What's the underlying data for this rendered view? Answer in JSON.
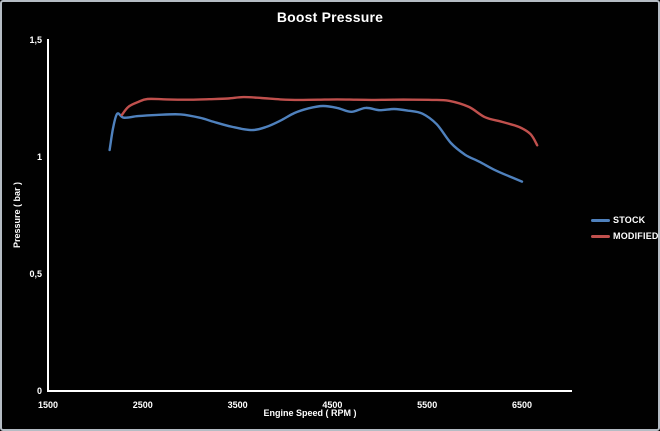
{
  "window": {
    "background": "#010101",
    "border_color": "#b5bcc4",
    "text_color": "#ffffff"
  },
  "chart_data": {
    "type": "line",
    "title": "Boost Pressure",
    "xlabel": "Engine Speed ( RPM )",
    "ylabel": "Pressure ( bar )",
    "xlim": [
      1500,
      6500
    ],
    "ylim": [
      0,
      1.5
    ],
    "grid": false,
    "background": "#010101",
    "legend_position": "right",
    "x_ticks": [
      {
        "value": 1500,
        "label": "1500"
      },
      {
        "value": 2500,
        "label": "2500"
      },
      {
        "value": 3500,
        "label": "3500"
      },
      {
        "value": 4500,
        "label": "4500"
      },
      {
        "value": 5500,
        "label": "5500"
      },
      {
        "value": 6500,
        "label": "6500"
      }
    ],
    "y_ticks": [
      {
        "value": 0,
        "label": "0"
      },
      {
        "value": 0.5,
        "label": "0,5"
      },
      {
        "value": 1,
        "label": "1"
      },
      {
        "value": 1.5,
        "label": "1,5"
      }
    ],
    "series": [
      {
        "name": "STOCK",
        "color": "#4F81BD",
        "points": [
          [
            2150,
            1.03
          ],
          [
            2185,
            1.12
          ],
          [
            2230,
            1.185
          ],
          [
            2300,
            1.168
          ],
          [
            2450,
            1.175
          ],
          [
            2650,
            1.18
          ],
          [
            2900,
            1.182
          ],
          [
            3100,
            1.168
          ],
          [
            3250,
            1.15
          ],
          [
            3450,
            1.128
          ],
          [
            3650,
            1.115
          ],
          [
            3800,
            1.128
          ],
          [
            3950,
            1.155
          ],
          [
            4100,
            1.188
          ],
          [
            4250,
            1.208
          ],
          [
            4400,
            1.218
          ],
          [
            4550,
            1.21
          ],
          [
            4700,
            1.193
          ],
          [
            4850,
            1.21
          ],
          [
            5000,
            1.2
          ],
          [
            5150,
            1.205
          ],
          [
            5300,
            1.198
          ],
          [
            5450,
            1.185
          ],
          [
            5600,
            1.14
          ],
          [
            5750,
            1.06
          ],
          [
            5900,
            1.01
          ],
          [
            6050,
            0.98
          ],
          [
            6200,
            0.947
          ],
          [
            6350,
            0.92
          ],
          [
            6500,
            0.895
          ]
        ]
      },
      {
        "name": "MODIFIED",
        "color": "#C0504D",
        "points": [
          [
            2280,
            1.18
          ],
          [
            2350,
            1.215
          ],
          [
            2450,
            1.235
          ],
          [
            2550,
            1.248
          ],
          [
            2750,
            1.246
          ],
          [
            3000,
            1.245
          ],
          [
            3200,
            1.247
          ],
          [
            3400,
            1.25
          ],
          [
            3560,
            1.256
          ],
          [
            3750,
            1.252
          ],
          [
            3950,
            1.246
          ],
          [
            4150,
            1.244
          ],
          [
            4350,
            1.245
          ],
          [
            4550,
            1.246
          ],
          [
            4750,
            1.245
          ],
          [
            4950,
            1.244
          ],
          [
            5150,
            1.245
          ],
          [
            5350,
            1.245
          ],
          [
            5550,
            1.244
          ],
          [
            5730,
            1.24
          ],
          [
            5940,
            1.214
          ],
          [
            6110,
            1.17
          ],
          [
            6290,
            1.15
          ],
          [
            6470,
            1.128
          ],
          [
            6590,
            1.098
          ],
          [
            6660,
            1.05
          ]
        ]
      }
    ]
  }
}
